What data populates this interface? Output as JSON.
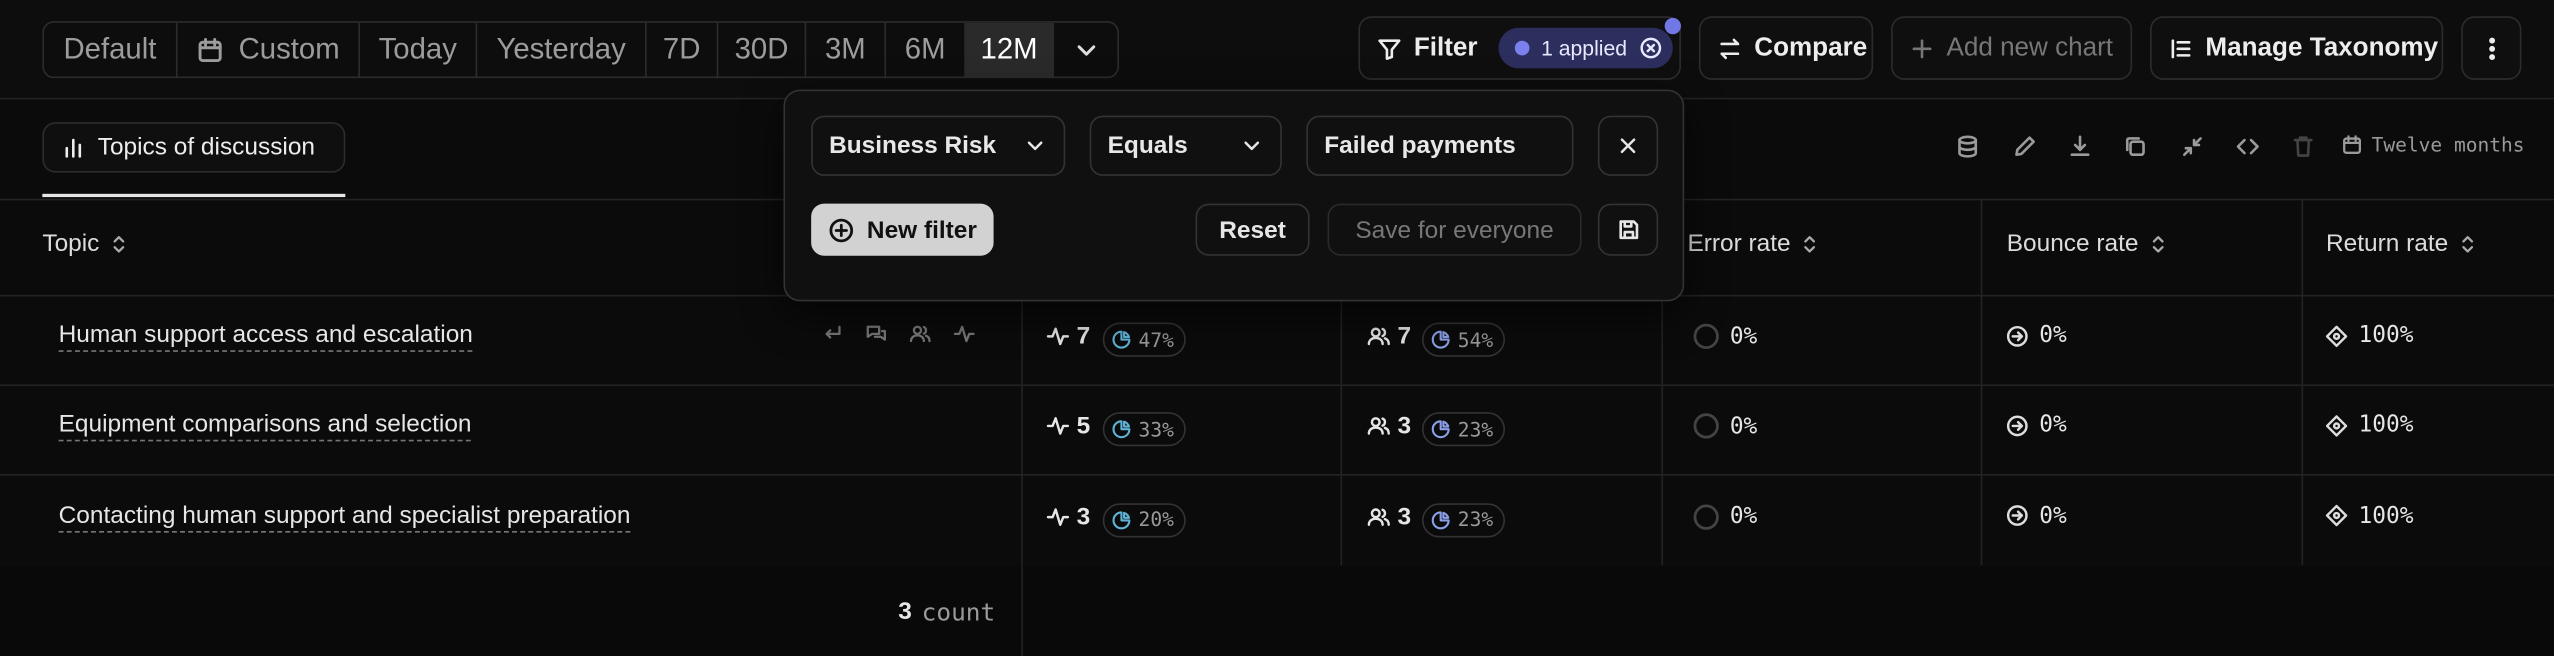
{
  "toolbar": {
    "ranges": [
      "Default",
      "Custom",
      "Today",
      "Yesterday",
      "7D",
      "30D",
      "3M",
      "6M",
      "12M"
    ],
    "filter": "Filter",
    "applied": "1 applied",
    "compare": "Compare",
    "add_chart": "Add new chart",
    "manage_taxonomy": "Manage Taxonomy"
  },
  "tab": "Topics of discussion",
  "period": "Twelve months",
  "filter_popover": {
    "field": "Business Risk",
    "operator": "Equals",
    "value": "Failed payments",
    "new_filter": "New filter",
    "reset": "Reset",
    "save": "Save for everyone"
  },
  "table": {
    "headers": [
      "Topic",
      "Error rate",
      "Bounce rate",
      "Return rate"
    ],
    "rows": [
      {
        "topic": "Human support access and escalation",
        "count": 7,
        "count_share": "47%",
        "users": 7,
        "users_share": "54%",
        "error": "0%",
        "bounce": "0%",
        "return": "100%"
      },
      {
        "topic": "Equipment comparisons and selection",
        "count": 5,
        "count_share": "33%",
        "users": 3,
        "users_share": "23%",
        "error": "0%",
        "bounce": "0%",
        "return": "100%"
      },
      {
        "topic": "Contacting human support and specialist preparation",
        "count": 3,
        "count_share": "20%",
        "users": 3,
        "users_share": "23%",
        "error": "0%",
        "bounce": "0%",
        "return": "100%"
      }
    ],
    "footer": {
      "count": 3,
      "label": "count"
    }
  }
}
